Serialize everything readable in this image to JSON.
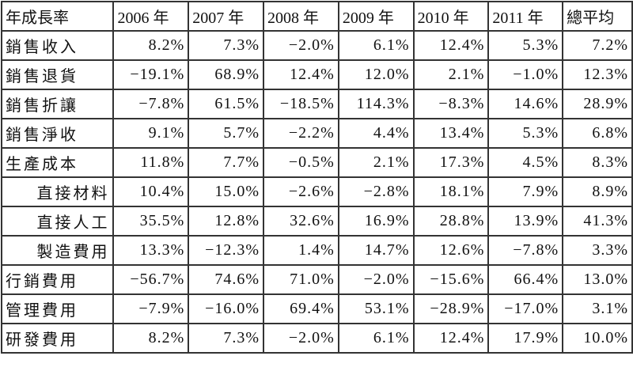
{
  "table": {
    "headers": [
      "年成長率",
      "2006 年",
      "2007 年",
      "2008 年",
      "2009 年",
      "2010 年",
      "2011 年",
      "總平均"
    ],
    "rows": [
      {
        "label": "銷售收入",
        "values": [
          "8.2%",
          "7.3%",
          "−2.0%",
          "6.1%",
          "12.4%",
          "5.3%",
          "7.2%"
        ]
      },
      {
        "label": "銷售退貨",
        "values": [
          "−19.1%",
          "68.9%",
          "12.4%",
          "12.0%",
          "2.1%",
          "−1.0%",
          "12.3%"
        ]
      },
      {
        "label": "銷售折讓",
        "values": [
          "−7.8%",
          "61.5%",
          "−18.5%",
          "114.3%",
          "−8.3%",
          "14.6%",
          "28.9%"
        ]
      },
      {
        "label": "銷售淨收",
        "values": [
          "9.1%",
          "5.7%",
          "−2.2%",
          "4.4%",
          "13.4%",
          "5.3%",
          "6.8%"
        ]
      },
      {
        "label": "生產成本",
        "values": [
          "11.8%",
          "7.7%",
          "−0.5%",
          "2.1%",
          "17.3%",
          "4.5%",
          "8.3%"
        ]
      },
      {
        "label": "直接材料",
        "sub": true,
        "values": [
          "10.4%",
          "15.0%",
          "−2.6%",
          "−2.8%",
          "18.1%",
          "7.9%",
          "8.9%"
        ]
      },
      {
        "label": "直接人工",
        "sub": true,
        "values": [
          "35.5%",
          "12.8%",
          "32.6%",
          "16.9%",
          "28.8%",
          "13.9%",
          "41.3%"
        ]
      },
      {
        "label": "製造費用",
        "sub": true,
        "values": [
          "13.3%",
          "−12.3%",
          "1.4%",
          "14.7%",
          "12.6%",
          "−7.8%",
          "3.3%"
        ]
      },
      {
        "label": "行銷費用",
        "values": [
          "−56.7%",
          "74.6%",
          "71.0%",
          "−2.0%",
          "−15.6%",
          "66.4%",
          "13.0%"
        ]
      },
      {
        "label": "管理費用",
        "values": [
          "−7.9%",
          "−16.0%",
          "69.4%",
          "53.1%",
          "−28.9%",
          "−17.0%",
          "3.1%"
        ]
      },
      {
        "label": "研發費用",
        "values": [
          "8.2%",
          "7.3%",
          "−2.0%",
          "6.1%",
          "12.4%",
          "17.9%",
          "10.0%"
        ]
      }
    ]
  }
}
